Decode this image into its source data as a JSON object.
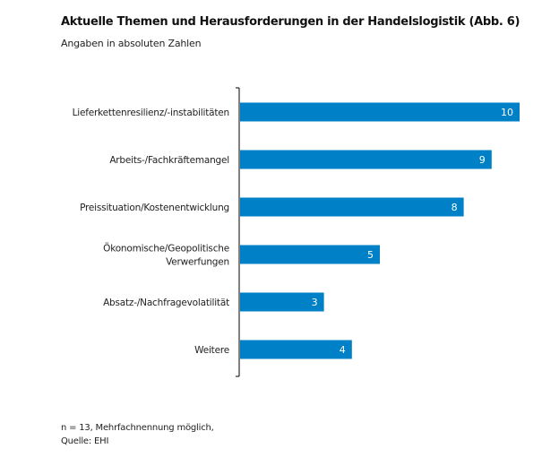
{
  "chart_data": {
    "type": "bar",
    "orientation": "horizontal",
    "title": "Aktuelle Themen und Herausforderungen  in der Handelslogistik (Abb. 6)",
    "subtitle": "Angaben in absoluten Zahlen",
    "categories": [
      [
        "Lieferkettenresilienz/-instabilitäten"
      ],
      [
        "Arbeits-/Fachkräftemangel"
      ],
      [
        "Preissituation/Kostenentwicklung"
      ],
      [
        "Ökonomische/Geopolitische",
        "Verwerfungen"
      ],
      [
        "Absatz-/Nachfragevolatilität"
      ],
      [
        "Weitere"
      ]
    ],
    "values": [
      10,
      9,
      8,
      5,
      3,
      4
    ],
    "xlim": [
      0,
      10
    ],
    "grid": false,
    "bar_color": "#0080c6",
    "footnote": [
      "n = 13, Mehrfachnennung möglich,",
      "Quelle: EHI"
    ]
  }
}
